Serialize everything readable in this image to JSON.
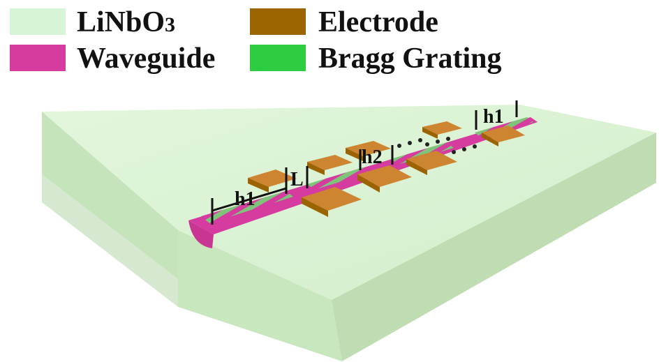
{
  "legend": {
    "items": [
      {
        "name": "linbo3",
        "label": "LiNbO",
        "sub": "3",
        "color": "#d6f5d6"
      },
      {
        "name": "waveguide",
        "label": "Waveguide",
        "color": "#d63ba0"
      },
      {
        "name": "electrode",
        "label": "Electrode",
        "color": "#9c6400"
      },
      {
        "name": "bragg-grating",
        "label": "Bragg Grating",
        "color": "#2ecc40"
      }
    ]
  },
  "diagram": {
    "labels": {
      "h1_left": "h1",
      "L": "L",
      "h2": "h2",
      "h1_right": "h1"
    },
    "colors": {
      "substrate_top": "#d9f2d2",
      "substrate_front": "#c5e3b9",
      "substrate_side": "#bcdcb0",
      "waveguide": "#d63ba0",
      "grating": "#7fc47a",
      "electrode_top": "#cd8532",
      "electrode_side": "#9c6400"
    }
  }
}
